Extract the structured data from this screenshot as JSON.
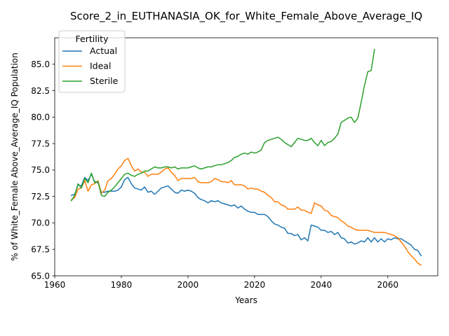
{
  "chart_data": {
    "type": "line",
    "title": "Score_2_in_EUTHANASIA_OK_for_White_Female_Above_Average_IQ",
    "xlabel": "Years",
    "ylabel": "% of White_Female Above_Average_IQ Population",
    "xlim": [
      1960,
      2075
    ],
    "ylim": [
      65.0,
      87.5
    ],
    "xticks": [
      1960,
      1980,
      2000,
      2020,
      2040,
      2060
    ],
    "yticks": [
      65.0,
      67.5,
      70.0,
      72.5,
      75.0,
      77.5,
      80.0,
      82.5,
      85.0
    ],
    "grid": false,
    "legend": {
      "title": "Fertility",
      "placement": "upper-left"
    },
    "series": [
      {
        "name": "Actual",
        "color": "#1f77b4",
        "x": [
          1965,
          1966,
          1967,
          1968,
          1969,
          1970,
          1971,
          1972,
          1973,
          1974,
          1975,
          1976,
          1977,
          1978,
          1979,
          1980,
          1981,
          1982,
          1983,
          1984,
          1985,
          1986,
          1987,
          1988,
          1989,
          1990,
          1991,
          1992,
          1993,
          1994,
          1995,
          1996,
          1997,
          1998,
          1999,
          2000,
          2001,
          2002,
          2003,
          2004,
          2005,
          2006,
          2007,
          2008,
          2009,
          2010,
          2011,
          2012,
          2013,
          2014,
          2015,
          2016,
          2017,
          2018,
          2019,
          2020,
          2021,
          2022,
          2023,
          2024,
          2025,
          2026,
          2027,
          2028,
          2029,
          2030,
          2031,
          2032,
          2033,
          2034,
          2035,
          2036,
          2037,
          2038,
          2039,
          2040,
          2041,
          2042,
          2043,
          2044,
          2045,
          2046,
          2047,
          2048,
          2049,
          2050,
          2051,
          2052,
          2053,
          2054,
          2055,
          2056,
          2057,
          2058,
          2059,
          2060,
          2061,
          2062,
          2063,
          2064,
          2065,
          2066,
          2067,
          2068,
          2069,
          2070
        ],
        "values": [
          72.6,
          72.7,
          73.6,
          73.5,
          74.3,
          74.0,
          74.6,
          73.9,
          73.8,
          72.9,
          72.9,
          73.0,
          73.0,
          73.0,
          73.1,
          73.4,
          74.1,
          74.3,
          73.7,
          73.3,
          73.2,
          73.1,
          73.4,
          72.9,
          73.0,
          72.7,
          73.0,
          73.3,
          73.4,
          73.5,
          73.2,
          72.9,
          72.8,
          73.1,
          73.0,
          73.1,
          73.0,
          72.8,
          72.4,
          72.2,
          72.1,
          71.9,
          72.1,
          72.0,
          72.1,
          71.9,
          71.8,
          71.7,
          71.6,
          71.7,
          71.4,
          71.6,
          71.3,
          71.1,
          71.0,
          71.0,
          70.8,
          70.8,
          70.8,
          70.6,
          70.2,
          69.9,
          69.8,
          69.6,
          69.5,
          69.0,
          69.0,
          68.8,
          68.9,
          68.4,
          68.6,
          68.3,
          69.8,
          69.7,
          69.6,
          69.3,
          69.3,
          69.1,
          69.2,
          68.9,
          69.1,
          68.6,
          68.5,
          68.1,
          68.2,
          68.0,
          68.1,
          68.3,
          68.2,
          68.6,
          68.2,
          68.6,
          68.2,
          68.5,
          68.2,
          68.5,
          68.4,
          68.6,
          68.5,
          68.5,
          68.3,
          68.1,
          67.9,
          67.5,
          67.4,
          66.9
        ]
      },
      {
        "name": "Ideal",
        "color": "#ff7f0e",
        "x": [
          1965,
          1966,
          1967,
          1968,
          1969,
          1970,
          1971,
          1972,
          1973,
          1974,
          1975,
          1976,
          1977,
          1978,
          1979,
          1980,
          1981,
          1982,
          1983,
          1984,
          1985,
          1986,
          1987,
          1988,
          1989,
          1990,
          1991,
          1992,
          1993,
          1994,
          1995,
          1996,
          1997,
          1998,
          1999,
          2000,
          2001,
          2002,
          2003,
          2004,
          2005,
          2006,
          2007,
          2008,
          2009,
          2010,
          2011,
          2012,
          2013,
          2014,
          2015,
          2016,
          2017,
          2018,
          2019,
          2020,
          2021,
          2022,
          2023,
          2024,
          2025,
          2026,
          2027,
          2028,
          2029,
          2030,
          2031,
          2032,
          2033,
          2034,
          2035,
          2036,
          2037,
          2038,
          2039,
          2040,
          2041,
          2042,
          2043,
          2044,
          2045,
          2046,
          2047,
          2048,
          2049,
          2050,
          2051,
          2052,
          2053,
          2054,
          2055,
          2056,
          2057,
          2058,
          2059,
          2060,
          2061,
          2062,
          2063,
          2064,
          2065,
          2066,
          2067,
          2068,
          2069,
          2070
        ],
        "values": [
          72.2,
          72.4,
          73.2,
          73.3,
          74.0,
          73.0,
          73.6,
          73.7,
          74.0,
          72.8,
          73.1,
          74.0,
          74.2,
          74.6,
          75.1,
          75.4,
          75.9,
          76.1,
          75.4,
          74.9,
          75.1,
          74.8,
          74.8,
          74.4,
          74.6,
          74.6,
          74.6,
          74.8,
          75.1,
          75.2,
          74.8,
          74.5,
          74.0,
          74.2,
          74.2,
          74.2,
          74.2,
          74.3,
          73.9,
          73.8,
          73.8,
          73.8,
          73.9,
          74.2,
          74.1,
          73.9,
          73.9,
          73.8,
          74.0,
          73.6,
          73.6,
          73.6,
          73.5,
          73.2,
          73.3,
          73.2,
          73.2,
          73.0,
          72.9,
          72.6,
          72.4,
          72.0,
          72.0,
          71.7,
          71.6,
          71.3,
          71.3,
          71.3,
          71.5,
          71.2,
          71.2,
          71.0,
          70.9,
          71.9,
          71.7,
          71.6,
          71.2,
          71.1,
          70.7,
          70.6,
          70.5,
          70.2,
          70.0,
          69.7,
          69.6,
          69.4,
          69.3,
          69.3,
          69.3,
          69.3,
          69.2,
          69.1,
          69.1,
          69.1,
          69.1,
          69.0,
          68.9,
          68.8,
          68.6,
          68.2,
          67.8,
          67.3,
          66.9,
          66.6,
          66.2,
          66.0
        ]
      },
      {
        "name": "Sterile",
        "color": "#2ca02c",
        "x": [
          1965,
          1966,
          1967,
          1968,
          1969,
          1970,
          1971,
          1972,
          1973,
          1974,
          1975,
          1976,
          1977,
          1978,
          1979,
          1980,
          1981,
          1982,
          1983,
          1984,
          1985,
          1986,
          1987,
          1988,
          1989,
          1990,
          1991,
          1992,
          1993,
          1994,
          1995,
          1996,
          1997,
          1998,
          1999,
          2000,
          2001,
          2002,
          2003,
          2004,
          2005,
          2006,
          2007,
          2008,
          2009,
          2010,
          2011,
          2012,
          2013,
          2014,
          2015,
          2016,
          2017,
          2018,
          2019,
          2020,
          2021,
          2022,
          2023,
          2024,
          2025,
          2026,
          2027,
          2028,
          2029,
          2030,
          2031,
          2032,
          2033,
          2034,
          2035,
          2036,
          2037,
          2038,
          2039,
          2040,
          2041,
          2042,
          2043,
          2044,
          2045,
          2046,
          2047,
          2048,
          2049,
          2050,
          2051,
          2052,
          2053,
          2054,
          2055,
          2056
        ],
        "values": [
          72.1,
          72.6,
          73.7,
          73.3,
          74.2,
          73.8,
          74.7,
          73.8,
          73.9,
          72.6,
          72.5,
          72.9,
          73.1,
          73.4,
          73.8,
          74.2,
          74.6,
          74.7,
          74.5,
          74.4,
          74.6,
          74.7,
          74.9,
          74.9,
          75.1,
          75.3,
          75.2,
          75.2,
          75.3,
          75.3,
          75.2,
          75.3,
          75.1,
          75.2,
          75.2,
          75.2,
          75.3,
          75.4,
          75.2,
          75.1,
          75.2,
          75.3,
          75.3,
          75.4,
          75.5,
          75.5,
          75.6,
          75.7,
          75.9,
          76.2,
          76.3,
          76.5,
          76.6,
          76.5,
          76.7,
          76.6,
          76.7,
          76.9,
          77.6,
          77.8,
          77.9,
          78.0,
          78.1,
          77.9,
          77.6,
          77.4,
          77.2,
          77.6,
          78.0,
          77.9,
          77.8,
          77.8,
          78.0,
          77.6,
          77.3,
          77.8,
          77.3,
          77.6,
          77.7,
          78.0,
          78.4,
          79.5,
          79.7,
          79.9,
          80.0,
          79.5,
          79.9,
          81.4,
          83.0,
          84.3,
          84.4,
          86.4
        ]
      }
    ]
  }
}
